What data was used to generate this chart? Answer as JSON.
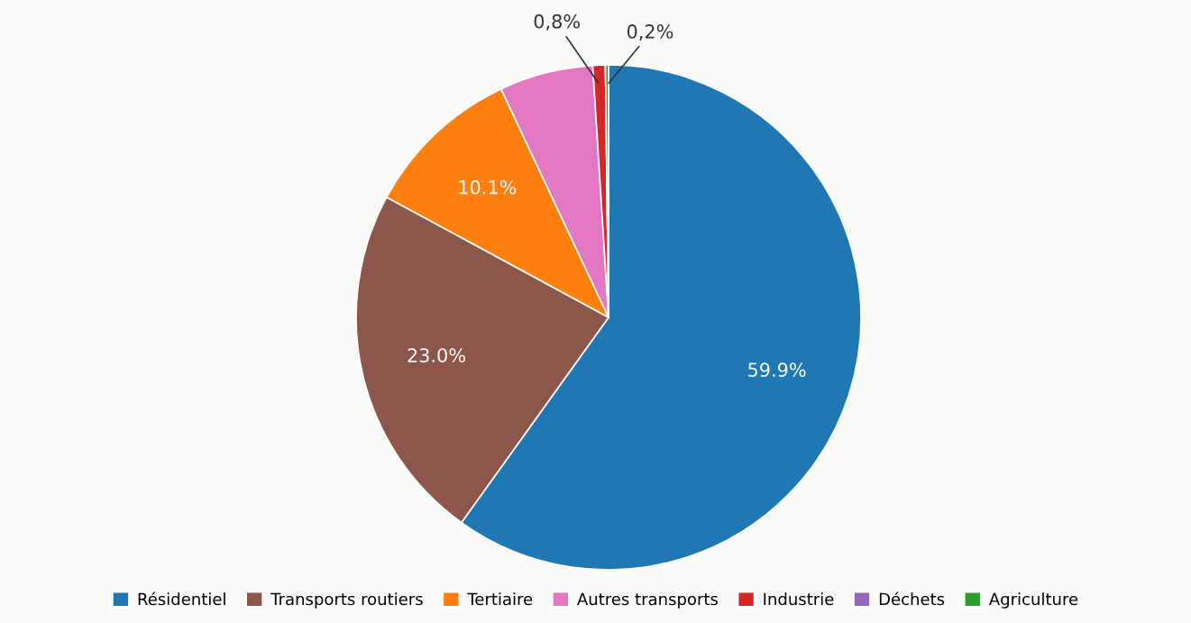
{
  "chart_data": {
    "type": "pie",
    "categories": [
      "Résidentiel",
      "Transports routiers",
      "Tertiaire",
      "Autres transports",
      "Industrie",
      "Déchets",
      "Agriculture"
    ],
    "values": [
      59.9,
      23.0,
      10.1,
      6.0,
      0.8,
      0.0,
      0.2
    ],
    "colors": [
      "#1f78b4",
      "#8c564b",
      "#ff7f0e",
      "#e377c2",
      "#d62728",
      "#9467bd",
      "#2ca02c"
    ],
    "value_labels": [
      "59.9%",
      "23.0%",
      "10.1%",
      null,
      "0,8%",
      null,
      "0,2%"
    ],
    "legend": "bottom"
  }
}
